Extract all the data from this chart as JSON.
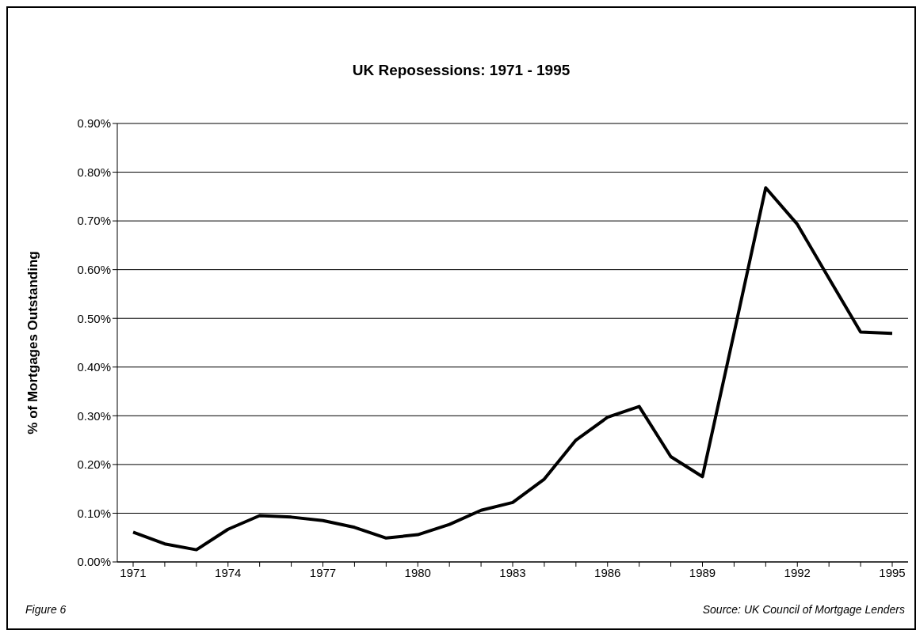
{
  "chart_data": {
    "type": "line",
    "title": "UK Reposessions: 1971 - 1995",
    "ylabel": "% of Mortgages Outstanding",
    "categories": [
      "1971",
      null,
      null,
      "1974",
      null,
      null,
      "1977",
      null,
      null,
      "1980",
      null,
      null,
      "1983",
      null,
      null,
      "1986",
      null,
      null,
      "1989",
      null,
      null,
      "1992",
      null,
      null,
      "1995"
    ],
    "series": [
      {
        "color": "#000000",
        "values": [
          0.061,
          0.037,
          0.025,
          0.067,
          0.095,
          0.092,
          0.085,
          0.071,
          0.049,
          0.056,
          0.077,
          0.106,
          0.122,
          0.17,
          0.25,
          0.297,
          0.319,
          0.216,
          0.175,
          0.47,
          0.768,
          0.693,
          0.582,
          0.472,
          0.469
        ]
      }
    ],
    "ylim": [
      0,
      0.9
    ],
    "yticks": [
      {
        "value": 0,
        "label": "0.00%"
      },
      {
        "value": 0.1,
        "label": "0.10%"
      },
      {
        "value": 0.2,
        "label": "0.20%"
      },
      {
        "value": 0.3,
        "label": "0.30%"
      },
      {
        "value": 0.4,
        "label": "0.40%"
      },
      {
        "value": 0.5,
        "label": "0.50%"
      },
      {
        "value": 0.6,
        "label": "0.60%"
      },
      {
        "value": 0.7,
        "label": "0.70%"
      },
      {
        "value": 0.8,
        "label": "0.80%"
      },
      {
        "value": 0.9,
        "label": "0.90%"
      }
    ],
    "grid": "y",
    "legend": false,
    "marker": "none",
    "line_style": "solid",
    "annotations": [
      "Figure 6",
      "Source: UK Council of Mortgage Lenders"
    ]
  }
}
